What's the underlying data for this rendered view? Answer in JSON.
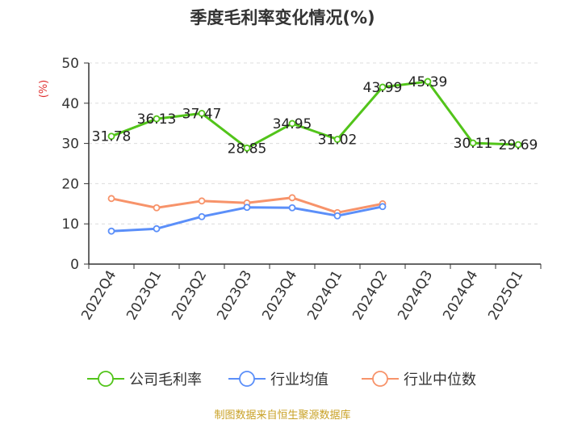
{
  "chart_data": {
    "type": "line",
    "title": "季度毛利率变化情况(%)",
    "ylabel": "(%)",
    "xlabel": "",
    "ylim": [
      0,
      50
    ],
    "yticks": [
      0,
      10,
      20,
      30,
      40,
      50
    ],
    "categories": [
      "2022Q4",
      "2023Q1",
      "2023Q2",
      "2023Q3",
      "2023Q4",
      "2024Q1",
      "2024Q2",
      "2024Q3",
      "2024Q4",
      "2025Q1"
    ],
    "series": [
      {
        "name": "公司毛利率",
        "color": "#52c41a",
        "values": [
          31.78,
          36.13,
          37.47,
          28.85,
          34.95,
          31.02,
          43.99,
          45.39,
          30.11,
          29.69
        ],
        "labels": [
          "31.78",
          "36.13",
          "37.47",
          "28.85",
          "34.95",
          "31.02",
          "43.99",
          "45.39",
          "30.11",
          "29.69"
        ]
      },
      {
        "name": "行业均值",
        "color": "#5b8ff9",
        "values": [
          8.2,
          8.8,
          11.8,
          14.1,
          14.0,
          12.0,
          14.3,
          null,
          null,
          null
        ]
      },
      {
        "name": "行业中位数",
        "color": "#f7936a",
        "values": [
          16.3,
          14.0,
          15.7,
          15.2,
          16.5,
          12.8,
          15.0,
          null,
          null,
          null
        ]
      }
    ],
    "grid": "horizontal-dashed",
    "legend": "bottom"
  },
  "source_text": "制图数据来自恒生聚源数据库"
}
